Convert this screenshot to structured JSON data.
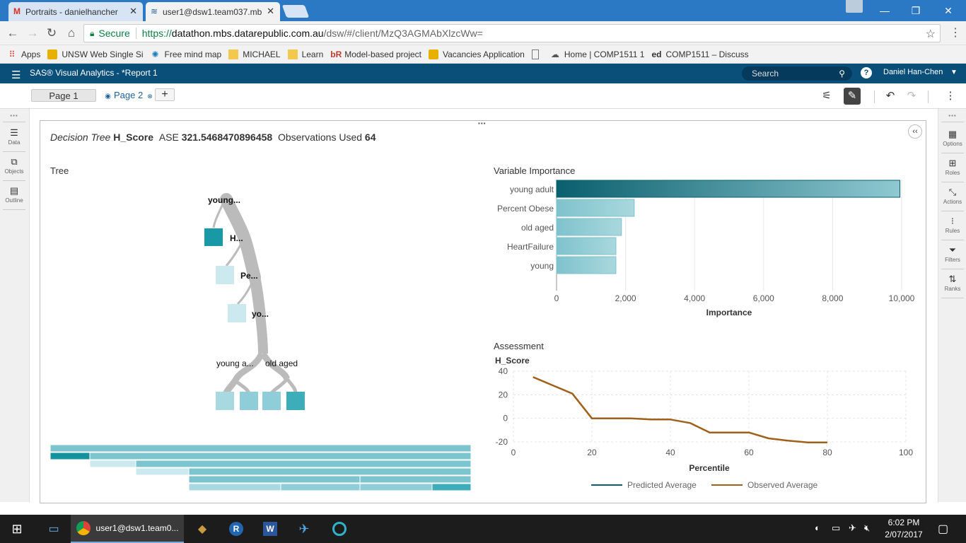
{
  "browser": {
    "tabs": [
      {
        "title": "Portraits - danielhancher",
        "icon": "gmail-icon"
      },
      {
        "title": "user1@dsw1.team037.mb",
        "icon": "sas-icon"
      }
    ],
    "address": {
      "secure_label": "Secure",
      "url_scheme": "https://",
      "url_host": "datathon.mbs.datarepublic.com.au",
      "url_path": "/dsw/#/client/MzQ3AGMAbXlzcWw="
    },
    "bookmarks": [
      {
        "label": "Apps",
        "icon": "apps-grid-icon"
      },
      {
        "label": "UNSW Web Single Si",
        "icon": "unsw-crest-icon"
      },
      {
        "label": "Free mind map",
        "icon": "mindmap-icon"
      },
      {
        "label": "MICHAEL",
        "icon": "folder-icon"
      },
      {
        "label": "Learn",
        "icon": "folder-icon"
      },
      {
        "label": "Model-based project",
        "icon": "br-icon"
      },
      {
        "label": "Vacancies Application",
        "icon": "unsw-crest-icon"
      },
      {
        "label": "",
        "icon": "page-icon"
      },
      {
        "label": "Home | COMP1511 1",
        "icon": "comp-icon"
      },
      {
        "label": "COMP1511 – Discuss",
        "icon": "ed-icon"
      }
    ]
  },
  "app": {
    "title": "SAS® Visual Analytics - *Report 1",
    "search_placeholder": "Search",
    "user": "Daniel Han-Chen"
  },
  "pages": {
    "page1": "Page 1",
    "page2": "Page 2"
  },
  "left_pane": [
    {
      "label": "Data",
      "icon": "data-icon"
    },
    {
      "label": "Objects",
      "icon": "objects-icon"
    },
    {
      "label": "Outline",
      "icon": "outline-icon"
    }
  ],
  "right_pane": [
    {
      "label": "Options",
      "icon": "options-icon"
    },
    {
      "label": "Roles",
      "icon": "roles-icon"
    },
    {
      "label": "Actions",
      "icon": "actions-icon"
    },
    {
      "label": "Rules",
      "icon": "rules-icon"
    },
    {
      "label": "Filters",
      "icon": "filter-icon"
    },
    {
      "label": "Ranks",
      "icon": "ranks-icon"
    }
  ],
  "report": {
    "model_label": "Decision Tree",
    "target": "H_Score",
    "ase_label": "ASE",
    "ase_value": "321.5468470896458",
    "obs_label": "Observations Used",
    "obs_value": "64",
    "tree_title": "Tree",
    "tree_nodes": {
      "root": "young...",
      "n2": "H...",
      "n3": "Pe...",
      "n4": "yo...",
      "left_split": "young a...",
      "right_split": "old aged"
    },
    "varimp_title": "Variable Importance",
    "assessment_title": "Assessment"
  },
  "chart_data": [
    {
      "type": "bar",
      "orientation": "horizontal",
      "title": "Variable Importance",
      "categories": [
        "young adult",
        "Percent Obese",
        "old aged",
        "HeartFailure",
        "young"
      ],
      "values": [
        9950,
        2250,
        1880,
        1720,
        1720
      ],
      "xlabel": "Importance",
      "xlim": [
        0,
        10000
      ],
      "xticks": [
        "0",
        "2,000",
        "4,000",
        "6,000",
        "8,000",
        "10,000"
      ],
      "grid": true
    },
    {
      "type": "line",
      "title": "Assessment",
      "xlabel": "Percentile",
      "ylabel": "H_Score",
      "xlim": [
        0,
        100
      ],
      "ylim": [
        -20,
        40
      ],
      "xticks": [
        "0",
        "20",
        "40",
        "60",
        "80",
        "100"
      ],
      "yticks": [
        "40",
        "20",
        "0",
        "-20"
      ],
      "legend": "bottom",
      "series": [
        {
          "name": "Predicted Average",
          "color": "#0a5f6e",
          "x": [],
          "y": []
        },
        {
          "name": "Observed Average",
          "color": "#a0601a",
          "x": [
            5,
            10,
            15,
            20,
            25,
            30,
            35,
            40,
            45,
            50,
            55,
            60,
            65,
            70,
            75,
            80
          ],
          "y": [
            35,
            28,
            21,
            0,
            0,
            0,
            -1,
            -1,
            -4,
            -12,
            -12,
            -12,
            -17,
            -19,
            -20.5,
            -20.5
          ]
        }
      ]
    }
  ],
  "taskbar": {
    "chrome_label": "user1@dsw1.team0...",
    "time": "6:02 PM",
    "date": "2/07/2017"
  }
}
